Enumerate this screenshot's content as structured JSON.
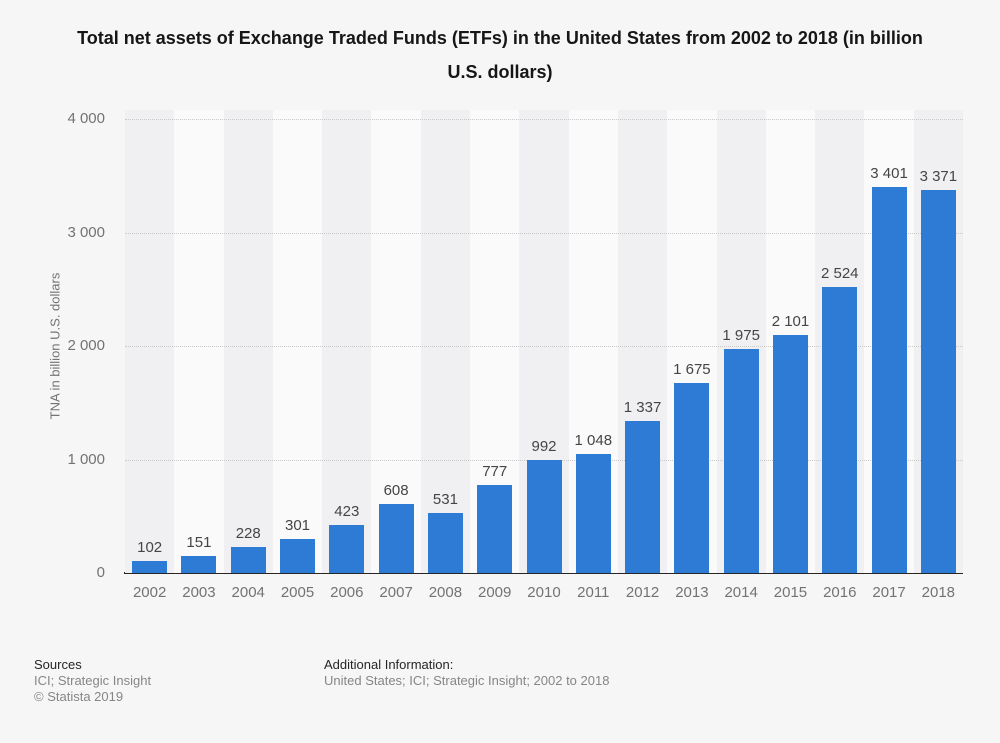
{
  "title": "Total net assets of Exchange Traded Funds (ETFs) in the United States from 2002 to 2018 (in billion U.S. dollars)",
  "chart_data": {
    "type": "bar",
    "categories": [
      "2002",
      "2003",
      "2004",
      "2005",
      "2006",
      "2007",
      "2008",
      "2009",
      "2010",
      "2011",
      "2012",
      "2013",
      "2014",
      "2015",
      "2016",
      "2017",
      "2018"
    ],
    "values": [
      102,
      151,
      228,
      301,
      423,
      608,
      531,
      777,
      992,
      1048,
      1337,
      1675,
      1975,
      2101,
      2524,
      3401,
      3371
    ],
    "value_labels": [
      "102",
      "151",
      "228",
      "301",
      "423",
      "608",
      "531",
      "777",
      "992",
      "1 048",
      "1 337",
      "1 675",
      "1 975",
      "2 101",
      "2 524",
      "3 401",
      "3 371"
    ],
    "xlabel": "",
    "ylabel": "TNA in billion U.S. dollars",
    "ylim": [
      0,
      4000
    ],
    "yticks": [
      {
        "value": 0,
        "label": "0"
      },
      {
        "value": 1000,
        "label": "1 000"
      },
      {
        "value": 2000,
        "label": "2 000"
      },
      {
        "value": 3000,
        "label": "3 000"
      },
      {
        "value": 4000,
        "label": "4 000"
      }
    ],
    "grid": "horizontal-dotted",
    "legend": "none",
    "bar_color": "#2e7bd6"
  },
  "footer": {
    "sources_heading": "Sources",
    "sources_line": "ICI; Strategic Insight",
    "copyright": "© Statista 2019",
    "additional_heading": "Additional Information:",
    "additional_line": "United States; ICI; Strategic Insight; 2002 to 2018"
  },
  "colors": {
    "background": "#f6f6f7",
    "band_dark": "#f0f0f3",
    "band_light": "#fafafa",
    "gridline": "#c9c9c9",
    "axis_line": "#262626",
    "bar": "#2e7bd6",
    "tick_text": "#737373",
    "value_text": "#454545",
    "title_text": "#161616"
  }
}
